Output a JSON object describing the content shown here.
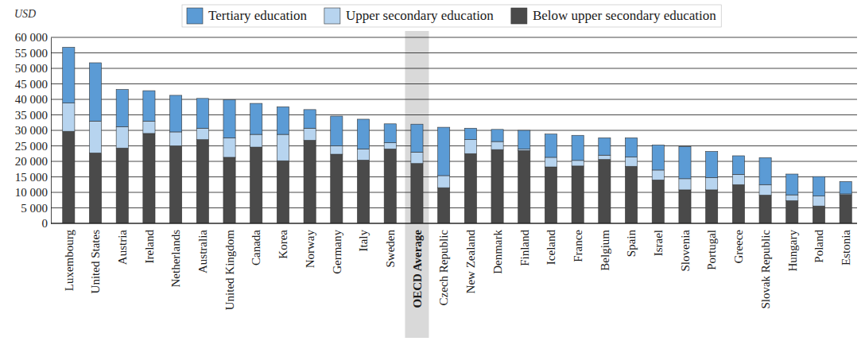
{
  "chart_data": {
    "type": "bar",
    "stacked": true,
    "y_label": "USD",
    "legend": "top",
    "grid": true,
    "categories": [
      "Luxembourg",
      "United States",
      "Austria",
      "Ireland",
      "Netherlands",
      "Australia",
      "United Kingdom",
      "Canada",
      "Korea",
      "Norway",
      "Germany",
      "Italy",
      "Sweden",
      "OECD Average",
      "Czech Republic",
      "New Zealand",
      "Denmark",
      "Finland",
      "Iceland",
      "France",
      "Belgium",
      "Spain",
      "Israel",
      "Slovenia",
      "Portugal",
      "Greece",
      "Slovak Republic",
      "Hungary",
      "Poland",
      "Estonia"
    ],
    "series": [
      {
        "name": "Tertiary education",
        "color": "#5b9bd5",
        "values": [
          18000,
          18800,
          12000,
          9800,
          11800,
          9600,
          12300,
          10000,
          8900,
          6000,
          9600,
          9600,
          6100,
          9000,
          15600,
          3700,
          3900,
          6000,
          7500,
          8100,
          5600,
          6200,
          8100,
          10400,
          8400,
          6000,
          8700,
          6700,
          6300,
          4000
        ]
      },
      {
        "name": "Upper secondary education",
        "color": "#b7d4ef",
        "values": [
          9100,
          10300,
          6900,
          4000,
          4500,
          3700,
          6300,
          4100,
          8500,
          3900,
          2700,
          3600,
          2000,
          3700,
          3900,
          4500,
          2600,
          500,
          3100,
          1800,
          1400,
          3000,
          3200,
          3600,
          4000,
          3300,
          3400,
          1900,
          3200,
          300
        ]
      },
      {
        "name": "Below upper secondary education",
        "color": "#4a4a4a",
        "values": [
          29700,
          22700,
          24300,
          29000,
          25000,
          27000,
          21300,
          24600,
          20200,
          26800,
          22300,
          20400,
          24000,
          19300,
          11500,
          22500,
          23800,
          23500,
          18200,
          18500,
          20600,
          18400,
          14000,
          10800,
          10800,
          12500,
          9100,
          7300,
          5600,
          9200
        ]
      }
    ],
    "ylim": [
      0,
      60000
    ],
    "yticks": [
      0,
      {
        "value": 5000,
        "label": "5 000"
      },
      {
        "value": 10000,
        "label": "10 000"
      },
      {
        "value": 15000,
        "label": "15 000"
      },
      {
        "value": 20000,
        "label": "20 000"
      },
      {
        "value": 25000,
        "label": "25 000"
      },
      {
        "value": 30000,
        "label": "30 000"
      },
      {
        "value": 35000,
        "label": "35 000"
      },
      {
        "value": 40000,
        "label": "40 000"
      },
      {
        "value": 45000,
        "label": "45 000"
      },
      {
        "value": 50000,
        "label": "50 000"
      },
      {
        "value": 55000,
        "label": "55 000"
      },
      {
        "value": 60000,
        "label": "60 000"
      }
    ]
  }
}
